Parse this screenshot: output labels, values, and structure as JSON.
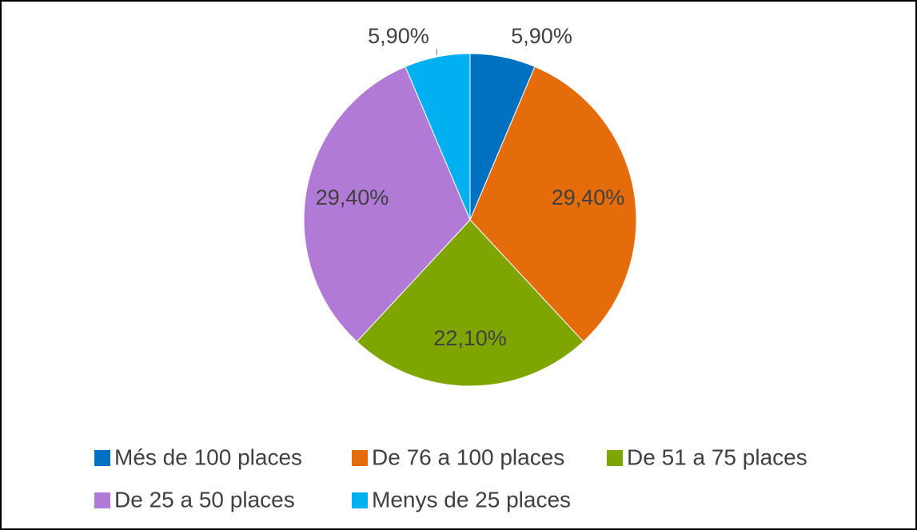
{
  "chart_data": {
    "type": "pie",
    "categories": [
      "Més de 100 places",
      "De 76 a 100 places",
      "De 51 a 75 places",
      "De 25 a 50 places",
      "Menys de 25 places"
    ],
    "values": [
      5.9,
      29.4,
      22.1,
      29.4,
      5.9
    ],
    "value_labels": [
      "5,90%",
      "29,40%",
      "22,10%",
      "29,40%",
      "5,90%"
    ],
    "colors": [
      "#0070c0",
      "#e46c0a",
      "#7fa500",
      "#b07ad6",
      "#00b0f0"
    ],
    "legend": "bottom"
  }
}
